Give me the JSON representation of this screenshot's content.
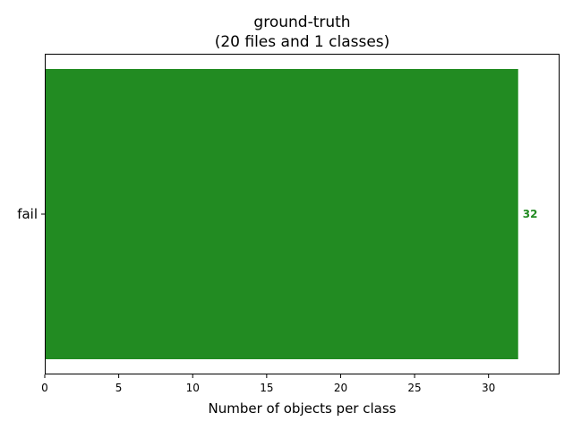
{
  "chart_data": {
    "type": "bar",
    "orientation": "horizontal",
    "title": "ground-truth",
    "subtitle": "(20 files and 1 classes)",
    "categories": [
      "fail"
    ],
    "values": [
      32
    ],
    "value_labels": [
      "32"
    ],
    "xlabel": "Number of objects per class",
    "ylabel": "",
    "xlim": [
      0,
      34.8
    ],
    "xticks": [
      0,
      5,
      10,
      15,
      20,
      25,
      30
    ],
    "xtick_labels": [
      "0",
      "5",
      "10",
      "15",
      "20",
      "25",
      "30"
    ],
    "grid": false,
    "legend": "none",
    "bar_color": "#228b22",
    "value_label_color": "#228b22"
  }
}
